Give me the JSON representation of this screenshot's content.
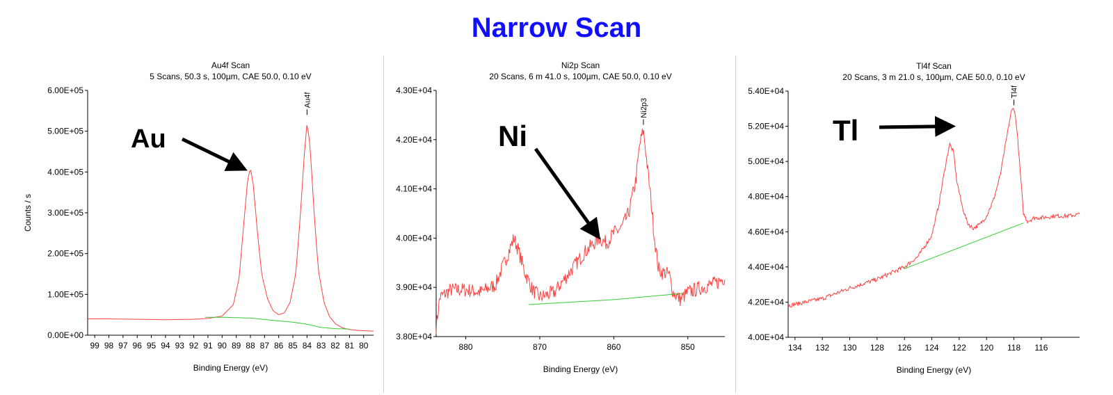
{
  "title": "Narrow Scan",
  "colors": {
    "title": "#1010ff",
    "spectrum": "#ff4040",
    "background": "#33cc33",
    "arrow": "#000000"
  },
  "chart_data": [
    {
      "type": "line",
      "title": "Au4f Scan",
      "subtitle": "5 Scans,  50.3 s,  100µm,  CAE 50.0,  0.10 eV",
      "xlabel": "Binding Energy (eV)",
      "ylabel": "Counts / s",
      "xlim": [
        99.5,
        79.3
      ],
      "ylim": [
        0,
        600000
      ],
      "x_ticks": [
        99,
        98,
        97,
        96,
        95,
        94,
        93,
        92,
        91,
        90,
        89,
        88,
        87,
        86,
        85,
        84,
        83,
        82,
        81,
        80
      ],
      "x_tick_labels": [
        "99",
        "98",
        "97",
        "96",
        "95",
        "94",
        "93",
        "92",
        "91",
        "90",
        "89",
        "88",
        "87",
        "86",
        "85",
        "84",
        "83",
        "82",
        "81",
        "80"
      ],
      "y_ticks": [
        0,
        100000,
        200000,
        300000,
        400000,
        500000,
        600000
      ],
      "y_tick_labels": [
        "0.00E+00",
        "1.00E+05",
        "2.00E+05",
        "3.00E+05",
        "4.00E+05",
        "5.00E+05",
        "6.00E+05"
      ],
      "peak_label": {
        "text": "Au4f",
        "x": 84.0,
        "y": 540000
      },
      "element_label": "Au",
      "arrow_to": {
        "x": 88.6,
        "y": 410000
      },
      "series": [
        {
          "role": "spectrum",
          "noise": 0,
          "x": [
            99.5,
            98,
            96,
            94,
            92,
            91,
            90,
            89.2,
            88.8,
            88.5,
            88.2,
            88.0,
            87.8,
            87.5,
            87.2,
            86.8,
            86.4,
            86.0,
            85.6,
            85.2,
            84.8,
            84.5,
            84.2,
            84.0,
            83.8,
            83.5,
            83.2,
            82.8,
            82.4,
            82.0,
            81.5,
            81.0,
            80.5,
            80.0,
            79.3
          ],
          "y": [
            40000,
            40000,
            39000,
            38000,
            39000,
            41000,
            47000,
            75000,
            140000,
            260000,
            380000,
            410000,
            370000,
            250000,
            150000,
            90000,
            60000,
            50000,
            55000,
            80000,
            150000,
            280000,
            440000,
            520000,
            470000,
            300000,
            160000,
            80000,
            45000,
            28000,
            18000,
            14000,
            12000,
            11000,
            10000
          ]
        },
        {
          "role": "background",
          "noise": 0,
          "x": [
            91.2,
            90,
            88,
            86,
            85,
            84,
            83,
            82,
            81
          ],
          "y": [
            44000,
            44000,
            42000,
            35000,
            32000,
            27000,
            19000,
            16000,
            15000
          ]
        }
      ]
    },
    {
      "type": "line",
      "title": "Ni2p Scan",
      "subtitle": "20 Scans,  6 m 41.0 s,  100µm,  CAE 50.0,  0.10 eV",
      "xlabel": "Binding Energy (eV)",
      "ylabel": "",
      "xlim": [
        884,
        845
      ],
      "ylim": [
        38000,
        43000
      ],
      "x_ticks": [
        880,
        870,
        860,
        850
      ],
      "x_tick_labels": [
        "880",
        "870",
        "860",
        "850"
      ],
      "y_ticks": [
        38000,
        39000,
        40000,
        41000,
        42000,
        43000
      ],
      "y_tick_labels": [
        "3.80E+04",
        "3.90E+04",
        "4.00E+04",
        "4.10E+04",
        "4.20E+04",
        "4.30E+04"
      ],
      "peak_label": {
        "text": "Ni2p3",
        "x": 856.0,
        "y": 42300
      },
      "element_label": "Ni",
      "arrow_to": {
        "x": 862.3,
        "y": 40070
      },
      "series": [
        {
          "role": "spectrum",
          "noise": 150,
          "x": [
            884,
            883.5,
            882,
            880,
            878,
            876,
            874.5,
            873.5,
            873,
            872,
            871,
            870,
            868,
            866,
            864,
            862,
            861,
            860,
            859,
            858,
            857,
            856.5,
            856,
            855.5,
            855,
            854.5,
            854,
            853.5,
            853,
            852.5,
            852,
            851,
            850,
            848,
            846,
            845
          ],
          "y": [
            38200,
            38800,
            38950,
            38950,
            38900,
            39050,
            39600,
            40000,
            39800,
            39300,
            38950,
            38800,
            38900,
            39300,
            39700,
            40000,
            39900,
            40100,
            40200,
            40500,
            41200,
            41900,
            42200,
            41500,
            40800,
            40000,
            39400,
            39300,
            39300,
            39250,
            38900,
            38750,
            38900,
            39000,
            39100,
            39200
          ]
        },
        {
          "role": "background",
          "noise": 0,
          "x": [
            871.5,
            860,
            850.5
          ],
          "y": [
            38650,
            38750,
            38880
          ]
        }
      ]
    },
    {
      "type": "line",
      "title": "Tl4f Scan",
      "subtitle": "20 Scans,  3 m 21.0 s,  100µm,  CAE 50.0,  0.10 eV",
      "xlabel": "Binding Energy (eV)",
      "ylabel": "",
      "xlim": [
        134.5,
        113.2
      ],
      "ylim": [
        40000,
        54000
      ],
      "x_ticks": [
        134,
        132,
        130,
        128,
        126,
        124,
        122,
        120,
        118,
        116
      ],
      "x_tick_labels": [
        "134",
        "132",
        "130",
        "128",
        "126",
        "124",
        "122",
        "120",
        "118",
        "116"
      ],
      "y_ticks": [
        40000,
        42000,
        44000,
        46000,
        48000,
        50000,
        52000,
        54000
      ],
      "y_tick_labels": [
        "4.00E+04",
        "4.20E+04",
        "4.40E+04",
        "4.60E+04",
        "4.80E+04",
        "5.00E+04",
        "5.20E+04",
        "5.40E+04"
      ],
      "peak_label": {
        "text": "Tl4f",
        "x": 118.0,
        "y": 53200
      },
      "element_label": "Tl",
      "arrow_to": {
        "x": 122.7,
        "y": 52000
      },
      "series": [
        {
          "role": "spectrum",
          "noise": 120,
          "x": [
            134.5,
            132,
            130,
            128,
            126,
            125,
            124,
            123.5,
            123,
            122.7,
            122.4,
            122.2,
            121.8,
            121.4,
            121,
            120.5,
            120,
            119.5,
            119,
            118.5,
            118.2,
            118,
            117.8,
            117.5,
            117.3,
            117,
            116.5,
            116,
            115,
            114,
            113.2
          ],
          "y": [
            41800,
            42200,
            42800,
            43300,
            44000,
            44600,
            45800,
            47500,
            49800,
            51000,
            50500,
            49000,
            47500,
            46500,
            46200,
            46400,
            46900,
            47800,
            49200,
            51500,
            52800,
            53100,
            52000,
            49000,
            47000,
            46600,
            46800,
            46800,
            46900,
            46900,
            47000
          ]
        },
        {
          "role": "background",
          "noise": 0,
          "x": [
            126,
            117.3
          ],
          "y": [
            43900,
            46500
          ]
        }
      ]
    }
  ]
}
